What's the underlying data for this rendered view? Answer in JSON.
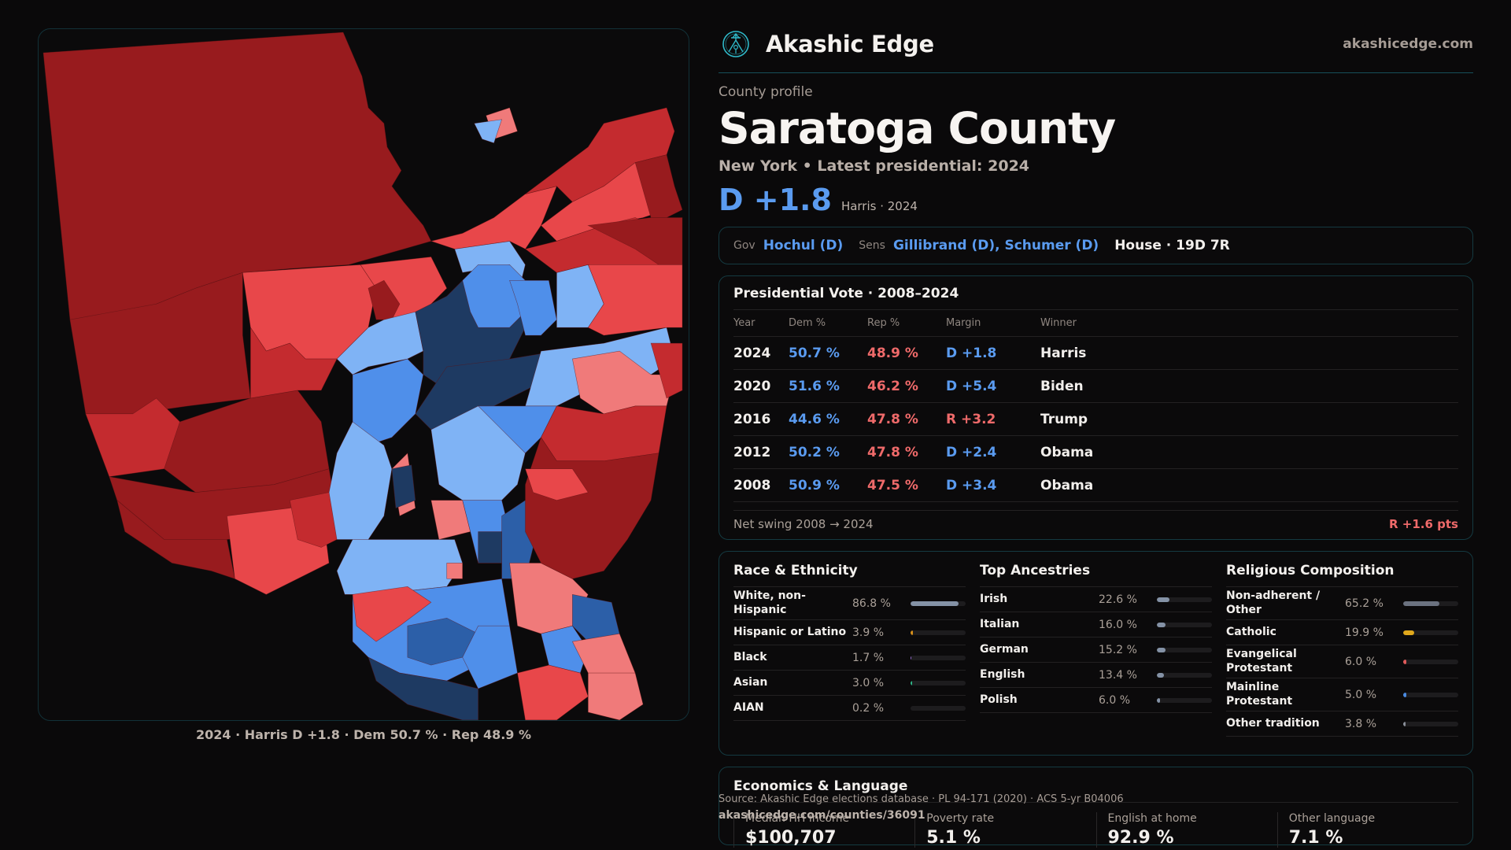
{
  "brand": {
    "name": "Akashic Edge",
    "url": "akashicedge.com",
    "logo_icon": "compass-star-logo-icon"
  },
  "header": {
    "eyebrow": "County profile",
    "title": "Saratoga County",
    "subline": "New York  • Latest presidential: 2024",
    "margin": "D +1.8",
    "margin_note": "Harris · 2024"
  },
  "officials": {
    "gov_label": "Gov",
    "gov": "Hochul (D)",
    "sens_label": "Sens",
    "sens": "Gillibrand (D), Schumer (D)",
    "house": "House · 19D 7R"
  },
  "presidential": {
    "title": "Presidential Vote · 2008–2024",
    "headers": [
      "Year",
      "Dem %",
      "Rep %",
      "Margin",
      "Winner"
    ],
    "rows": [
      {
        "year": "2024",
        "dem": "50.7 %",
        "rep": "48.9 %",
        "margin": "D +1.8",
        "party": "D",
        "winner": "Harris"
      },
      {
        "year": "2020",
        "dem": "51.6 %",
        "rep": "46.2 %",
        "margin": "D +5.4",
        "party": "D",
        "winner": "Biden"
      },
      {
        "year": "2016",
        "dem": "44.6 %",
        "rep": "47.8 %",
        "margin": "R +3.2",
        "party": "R",
        "winner": "Trump"
      },
      {
        "year": "2012",
        "dem": "50.2 %",
        "rep": "47.8 %",
        "margin": "D +2.4",
        "party": "D",
        "winner": "Obama"
      },
      {
        "year": "2008",
        "dem": "50.9 %",
        "rep": "47.5 %",
        "margin": "D +3.4",
        "party": "D",
        "winner": "Obama"
      }
    ],
    "swing_label": "Net swing 2008 → 2024",
    "swing_value": "R +1.6 pts"
  },
  "race": {
    "title": "Race & Ethnicity",
    "rows": [
      {
        "label": "White, non-Hispanic",
        "value": "86.8 %",
        "pct": 86.8,
        "color": "#8492a6"
      },
      {
        "label": "Hispanic or Latino",
        "value": "3.9 %",
        "pct": 3.9,
        "color": "#d8901a"
      },
      {
        "label": "Black",
        "value": "1.7 %",
        "pct": 1.7,
        "color": "#9a6fd8"
      },
      {
        "label": "Asian",
        "value": "3.0 %",
        "pct": 3.0,
        "color": "#2fb889"
      },
      {
        "label": "AIAN",
        "value": "0.2 %",
        "pct": 0.2,
        "color": "#8492a6"
      }
    ]
  },
  "ancestry": {
    "title": "Top Ancestries",
    "rows": [
      {
        "label": "Irish",
        "value": "22.6 %",
        "pct": 22.6,
        "color": "#8492a6"
      },
      {
        "label": "Italian",
        "value": "16.0 %",
        "pct": 16.0,
        "color": "#8492a6"
      },
      {
        "label": "German",
        "value": "15.2 %",
        "pct": 15.2,
        "color": "#8492a6"
      },
      {
        "label": "English",
        "value": "13.4 %",
        "pct": 13.4,
        "color": "#8492a6"
      },
      {
        "label": "Polish",
        "value": "6.0 %",
        "pct": 6.0,
        "color": "#8492a6"
      }
    ]
  },
  "religion": {
    "title": "Religious Composition",
    "rows": [
      {
        "label": "Non-adherent / Other",
        "value": "65.2 %",
        "pct": 65.2,
        "color": "#6b7280"
      },
      {
        "label": "Catholic",
        "value": "19.9 %",
        "pct": 19.9,
        "color": "#e0a81c"
      },
      {
        "label": "Evangelical Protestant",
        "value": "6.0 %",
        "pct": 6.0,
        "color": "#e05a5a"
      },
      {
        "label": "Mainline Protestant",
        "value": "5.0 %",
        "pct": 5.0,
        "color": "#4a8ae0"
      },
      {
        "label": "Other tradition",
        "value": "3.8 %",
        "pct": 3.8,
        "color": "#8a8f99"
      }
    ]
  },
  "economics": {
    "title": "Economics & Language",
    "cells": [
      {
        "label": "Median HH income",
        "value": "$100,707"
      },
      {
        "label": "Poverty rate",
        "value": "5.1 %"
      },
      {
        "label": "English at home",
        "value": "92.9 %"
      },
      {
        "label": "Other language",
        "value": "7.1 %"
      }
    ]
  },
  "source": {
    "text": "Source: Akashic Edge elections database · PL 94-171 (2020) · ACS 5-yr B04006",
    "url": "akashicedge.com/counties/36091"
  },
  "map": {
    "caption": "2024 · Harris D +1.8 · Dem 50.7 % · Rep 48.9 %",
    "colors": {
      "safe_r": "#981b1e",
      "likely_r": "#c42b2f",
      "lean_r": "#e8474a",
      "tilt_r": "#f07a7a",
      "tilt_d": "#7fb3f5",
      "lean_d": "#4f8fea",
      "likely_d": "#2c5fa8",
      "safe_d": "#1e3a62"
    }
  }
}
